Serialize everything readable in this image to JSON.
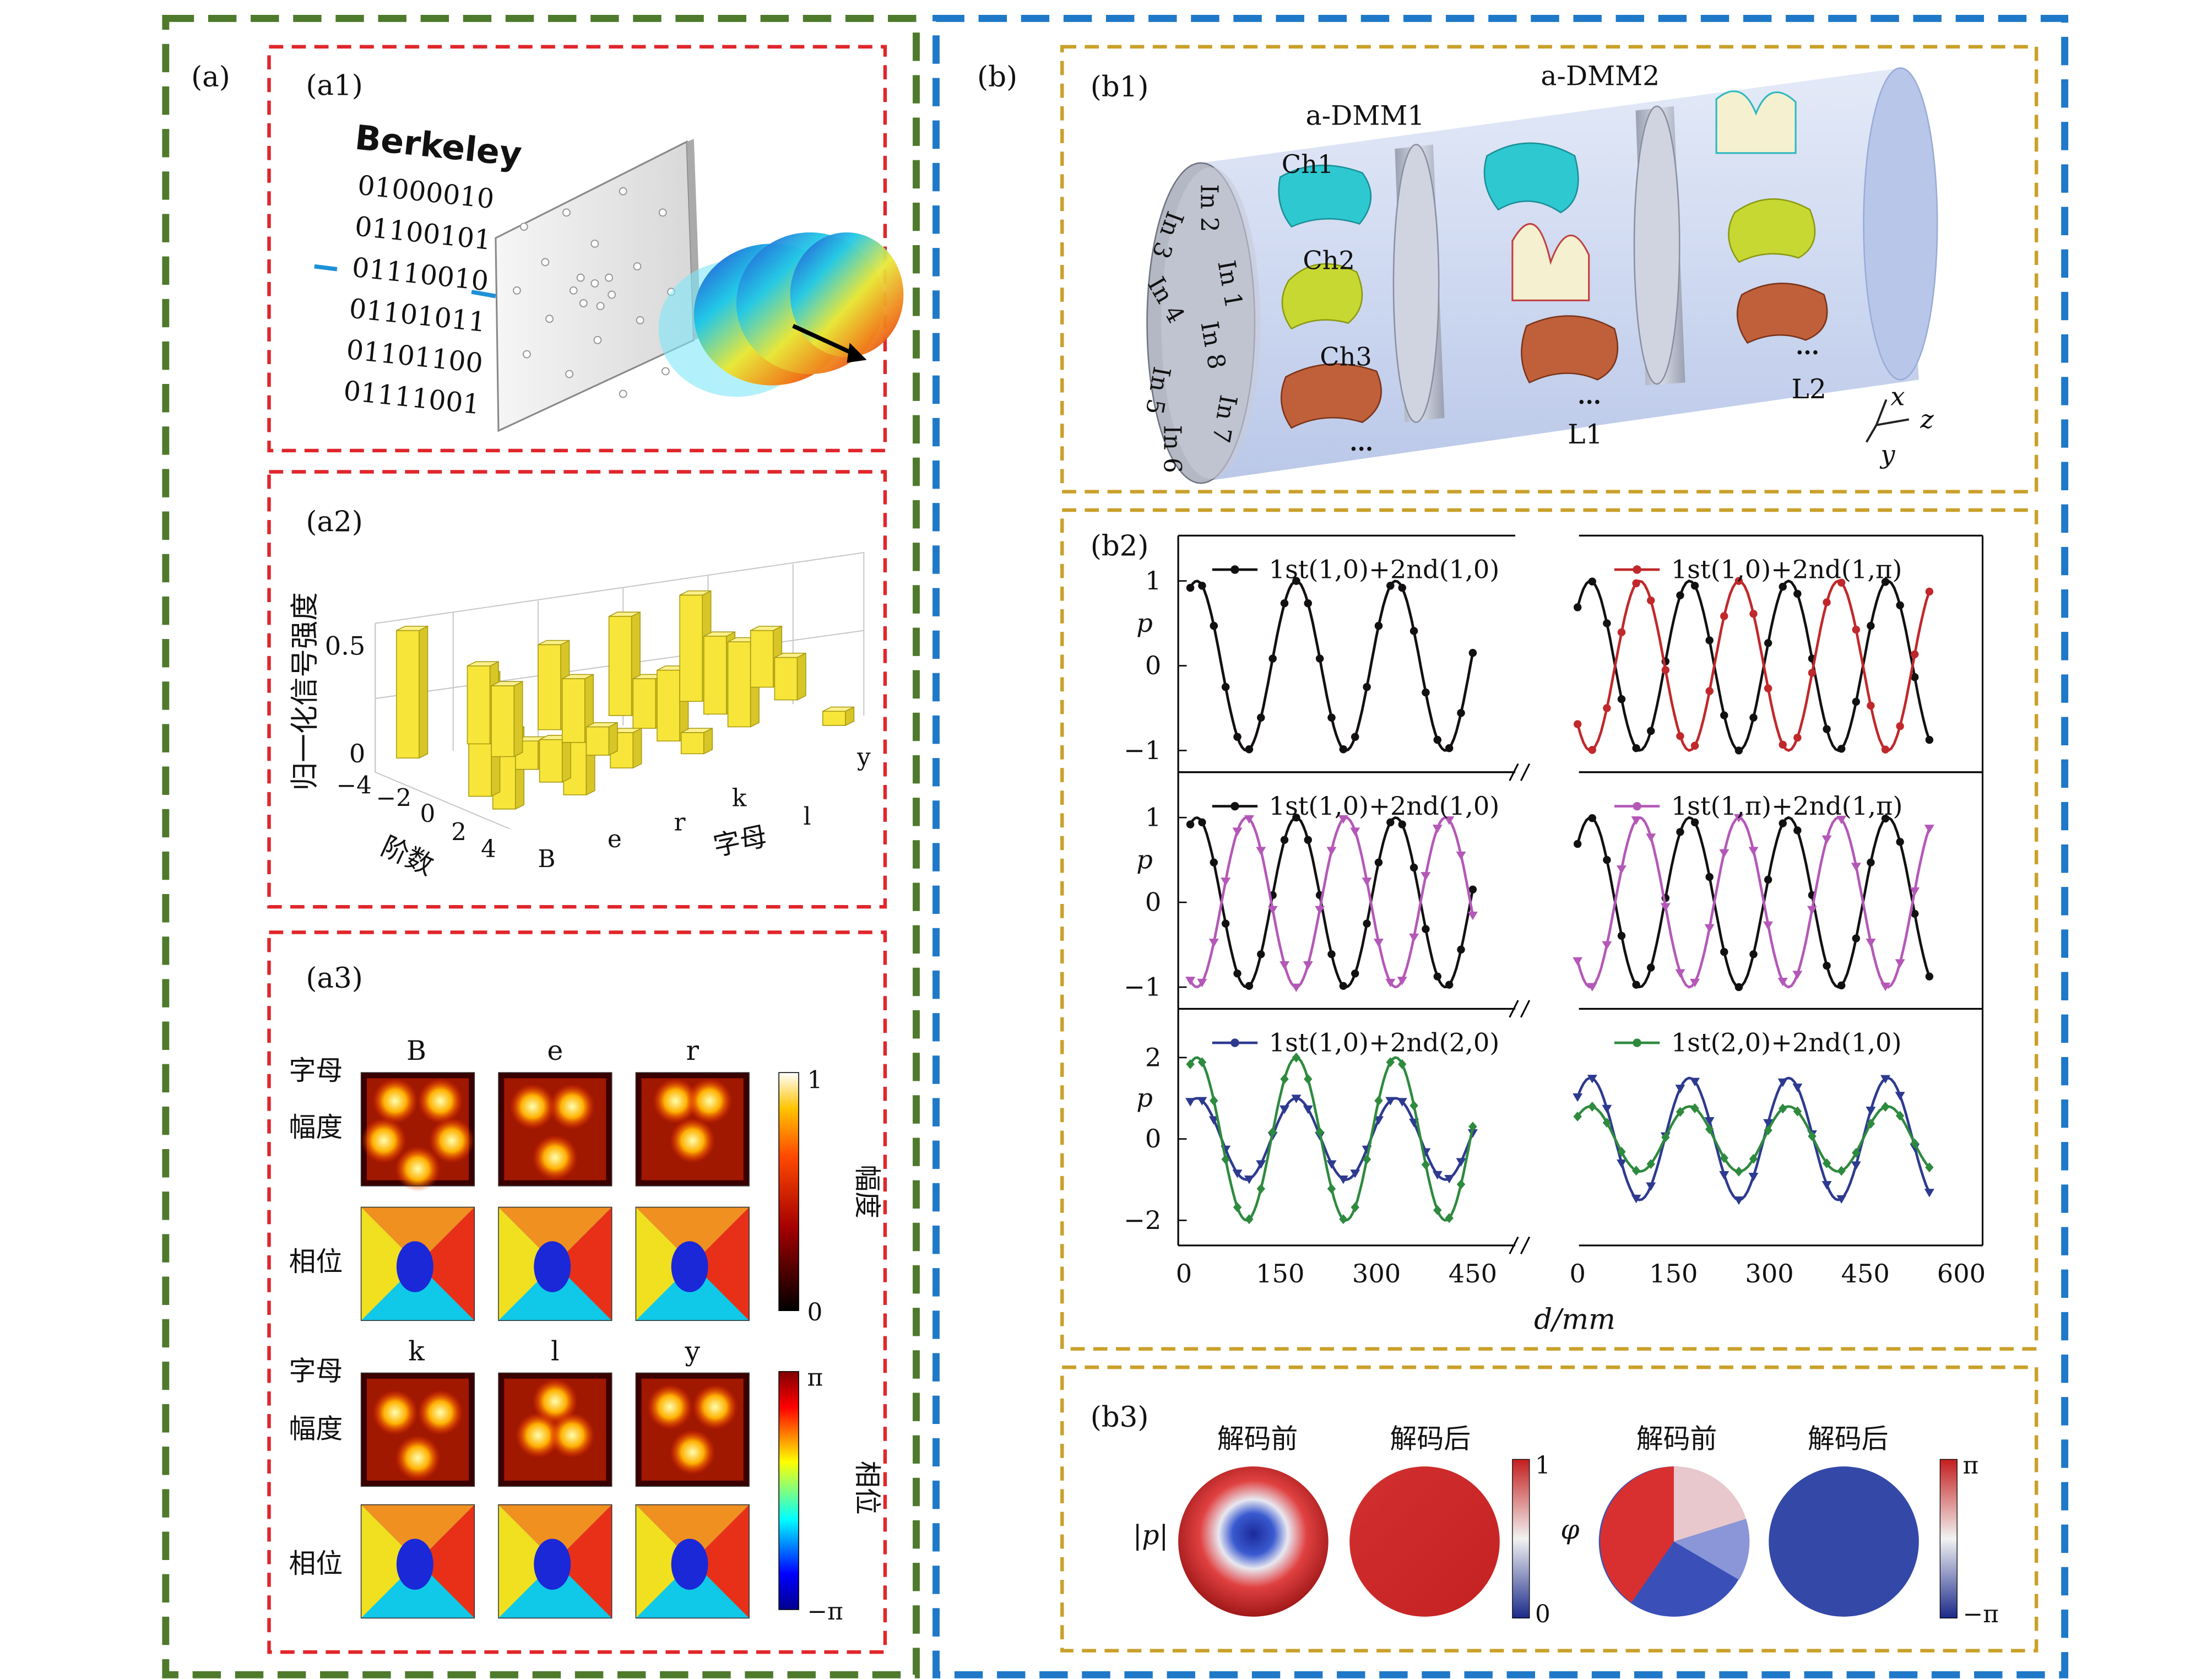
{
  "panel_a": {
    "label": "(a)",
    "a1": {
      "label": "(a1)",
      "word": "Berkeley",
      "binary": [
        "01000010",
        "01100101",
        "01110010",
        "01101011",
        "01101100",
        "01111001"
      ]
    },
    "a2": {
      "label": "(a2)",
      "ylabel": "归一化信号强度",
      "yticks": [
        "0.5",
        "0"
      ],
      "order_ticks": [
        "−4",
        "−2",
        "0",
        "2",
        "4"
      ],
      "order_label": "阶数",
      "letter_ticks": [
        "B",
        "e",
        "r",
        "k",
        "l",
        "y"
      ],
      "letter_label": "字母"
    },
    "a3": {
      "label": "(a3)",
      "row_letter": "字母",
      "row_amp": "幅度",
      "row_phase": "相位",
      "letters_top": [
        "B",
        "e",
        "r"
      ],
      "letters_bottom": [
        "k",
        "l",
        "y"
      ],
      "cbar_amp": {
        "max": "1",
        "min": "0",
        "label": "幅度"
      },
      "cbar_phase": {
        "max": "π",
        "min": "−π",
        "label": "相位"
      }
    }
  },
  "panel_b": {
    "label": "(b)",
    "b1": {
      "label": "(b1)",
      "dmm1": "a-DMM1",
      "dmm2": "a-DMM2",
      "channels": [
        "Ch1",
        "Ch2",
        "Ch3"
      ],
      "inputs": [
        "In 1",
        "In 2",
        "In 3",
        "In 4",
        "In 5",
        "In 6",
        "In 7",
        "In 8"
      ],
      "l1": "L1",
      "l2": "L2",
      "axes": [
        "x",
        "y",
        "z"
      ],
      "ellipsis": "..."
    },
    "b2": {
      "label": "(b2)",
      "ylabel": "p",
      "xlabel": "d/mm",
      "x_ticks_left": [
        "0",
        "150",
        "300",
        "450"
      ],
      "x_ticks_right": [
        "0",
        "150",
        "300",
        "450",
        "600"
      ],
      "rows": [
        {
          "yticks": [
            "1",
            "0",
            "−1"
          ],
          "legend_left": "1st(1,0)+2nd(1,0)",
          "legend_right": "1st(1,0)+2nd(1,π)"
        },
        {
          "yticks": [
            "1",
            "0",
            "−1"
          ],
          "legend_left": "1st(1,0)+2nd(1,0)",
          "legend_right": "1st(1,π)+2nd(1,π)"
        },
        {
          "yticks": [
            "2",
            "0",
            "−2"
          ],
          "legend_left": "1st(1,0)+2nd(2,0)",
          "legend_right": "1st(2,0)+2nd(1,0)"
        }
      ]
    },
    "b3": {
      "label": "(b3)",
      "before": "解码前",
      "after": "解码后",
      "amp_symbol": "|p|",
      "phase_symbol": "φ",
      "cbar_amp": {
        "max": "1",
        "min": "0"
      },
      "cbar_phase": {
        "max": "π",
        "min": "−π"
      }
    }
  },
  "colors": {
    "frame_a": "#4e7a2c",
    "frame_b": "#1f78c8",
    "sub_a": "#e0262b",
    "sub_b": "#c9a02a",
    "bar": "#f7e53a",
    "series_black": "#111111",
    "series_red": "#c0282b",
    "series_purple": "#b458b8",
    "series_blue": "#2d3a8f",
    "series_green": "#2e8a3e"
  },
  "chart_data": {
    "type": "line",
    "title": "(b2)",
    "xlabel": "d/mm",
    "ylabel": "p",
    "xlim": [
      0,
      600
    ],
    "series": [
      {
        "name": "1st(1,0)+2nd(1,0)",
        "panel": 1,
        "amplitude": 1,
        "phase": 0
      },
      {
        "name": "1st(1,0)+2nd(1,π)",
        "panel": 1,
        "amplitude": 1,
        "phase": 3.14
      },
      {
        "name": "1st(1,π)+2nd(1,π)",
        "panel": 2,
        "amplitude": 1,
        "phase": 3.14
      },
      {
        "name": "1st(1,0)+2nd(2,0)",
        "panel": 3,
        "amplitude_left": 1,
        "amplitude_right": 1.5
      },
      {
        "name": "1st(2,0)+2nd(1,0)",
        "panel": 3,
        "amplitude_left": 2,
        "amplitude_right": 0.8
      }
    ]
  }
}
